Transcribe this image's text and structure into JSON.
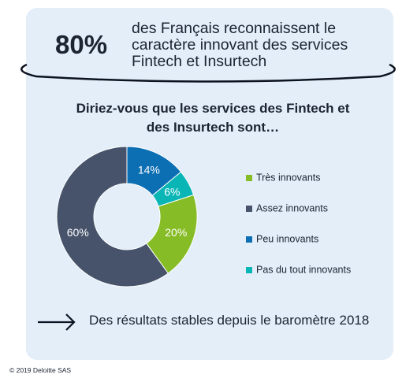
{
  "header": {
    "stat_value": "80%",
    "stat_line1": "des Français reconnaissent le",
    "stat_line2": "caractère innovant des services",
    "stat_line3": "Fintech et Insurtech"
  },
  "question": {
    "line1": "Diriez-vous que les services des Fintech et",
    "line2": "des Insurtech sont…"
  },
  "footer": {
    "text": "Des résultats stables depuis le baromètre 2018",
    "copyright": "© 2019 Deloitte SAS"
  },
  "colors": {
    "card_bg": "#e3eef9",
    "ring": "#0c1220",
    "text": "#1c2331"
  },
  "chart_data": {
    "type": "pie",
    "variant": "donut",
    "legend_position": "right",
    "series": [
      {
        "name": "Très innovants",
        "value": 20,
        "label": "20%",
        "color": "#86bc25"
      },
      {
        "name": "Assez innovants",
        "value": 60,
        "label": "60%",
        "color": "#46536a"
      },
      {
        "name": "Peu innovants",
        "value": 14,
        "label": "14%",
        "color": "#0d6fb3"
      },
      {
        "name": "Pas du tout innovants",
        "value": 6,
        "label": "6%",
        "color": "#0ab5b6"
      }
    ]
  }
}
